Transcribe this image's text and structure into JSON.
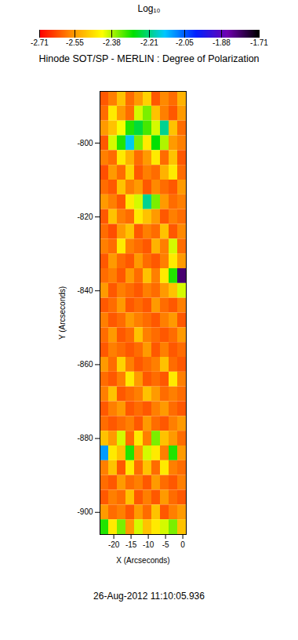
{
  "chart_data": {
    "type": "heatmap",
    "title": "Hinode SOT/SP - MERLIN : Degree of Polarization",
    "x_label": "X (Arcseconds)",
    "y_label": "Y (Arcseconds)",
    "annotation": "26-Aug-2012 11:10:05.936",
    "xlim": [
      -24,
      1
    ],
    "xticks": [
      -20,
      -15,
      -10,
      -5,
      0
    ],
    "ylim": [
      -906,
      -786
    ],
    "yticks": [
      -800,
      -820,
      -840,
      -860,
      -880,
      -900
    ],
    "colorbar": {
      "label": "Log₁₀",
      "range": [
        -2.71,
        -1.71
      ],
      "ticks": [
        -2.71,
        -2.55,
        -2.38,
        -2.21,
        -2.05,
        -1.88,
        -1.71
      ]
    },
    "cells": {
      "x_edges": [
        -24,
        -21.5,
        -19,
        -16.5,
        -14,
        -11.5,
        -9,
        -6.5,
        -4,
        -1.5,
        1
      ],
      "y_edges": [
        -786,
        -790,
        -794,
        -798,
        -802,
        -806,
        -810,
        -814,
        -818,
        -822,
        -826,
        -830,
        -834,
        -838,
        -842,
        -846,
        -850,
        -854,
        -858,
        -862,
        -866,
        -870,
        -874,
        -878,
        -882,
        -886,
        -890,
        -894,
        -898,
        -902,
        -906
      ],
      "values": [
        [
          -2.62,
          -2.58,
          -2.5,
          -2.6,
          -2.55,
          -2.48,
          -2.62,
          -2.57,
          -2.6,
          -2.52
        ],
        [
          -2.6,
          -2.45,
          -2.55,
          -2.6,
          -2.4,
          -2.35,
          -2.5,
          -2.58,
          -2.62,
          -2.55
        ],
        [
          -2.55,
          -2.5,
          -2.42,
          -2.3,
          -2.25,
          -2.32,
          -2.4,
          -2.2,
          -2.5,
          -2.6
        ],
        [
          -2.62,
          -2.4,
          -2.3,
          -2.15,
          -2.35,
          -2.45,
          -2.28,
          -2.38,
          -2.55,
          -2.58
        ],
        [
          -2.58,
          -2.6,
          -2.45,
          -2.52,
          -2.6,
          -2.55,
          -2.45,
          -2.6,
          -2.5,
          -2.62
        ],
        [
          -2.63,
          -2.55,
          -2.6,
          -2.48,
          -2.62,
          -2.58,
          -2.6,
          -2.52,
          -2.45,
          -2.6
        ],
        [
          -2.6,
          -2.62,
          -2.5,
          -2.58,
          -2.55,
          -2.62,
          -2.57,
          -2.6,
          -2.62,
          -2.55
        ],
        [
          -2.55,
          -2.58,
          -2.62,
          -2.45,
          -2.4,
          -2.2,
          -2.35,
          -2.55,
          -2.6,
          -2.58
        ],
        [
          -2.62,
          -2.5,
          -2.58,
          -2.6,
          -2.45,
          -2.5,
          -2.55,
          -2.62,
          -2.58,
          -2.6
        ],
        [
          -2.6,
          -2.63,
          -2.55,
          -2.5,
          -2.62,
          -2.58,
          -2.6,
          -2.5,
          -2.62,
          -2.57
        ],
        [
          -2.58,
          -2.6,
          -2.45,
          -2.58,
          -2.6,
          -2.62,
          -2.52,
          -2.58,
          -2.4,
          -2.6
        ],
        [
          -2.62,
          -2.55,
          -2.6,
          -2.62,
          -2.55,
          -2.6,
          -2.62,
          -2.58,
          -2.45,
          -2.55
        ],
        [
          -2.6,
          -2.58,
          -2.62,
          -2.55,
          -2.6,
          -2.5,
          -2.58,
          -2.45,
          -2.3,
          -1.8
        ],
        [
          -2.55,
          -2.62,
          -2.58,
          -2.6,
          -2.62,
          -2.58,
          -2.6,
          -2.55,
          -2.5,
          -2.4
        ],
        [
          -2.62,
          -2.6,
          -2.55,
          -2.62,
          -2.6,
          -2.62,
          -2.55,
          -2.6,
          -2.62,
          -2.58
        ],
        [
          -2.58,
          -2.62,
          -2.6,
          -2.55,
          -2.58,
          -2.6,
          -2.62,
          -2.58,
          -2.55,
          -2.62
        ],
        [
          -2.6,
          -2.55,
          -2.62,
          -2.6,
          -2.5,
          -2.58,
          -2.6,
          -2.62,
          -2.6,
          -2.55
        ],
        [
          -2.62,
          -2.58,
          -2.6,
          -2.62,
          -2.6,
          -2.55,
          -2.62,
          -2.58,
          -2.62,
          -2.6
        ],
        [
          -2.55,
          -2.6,
          -2.48,
          -2.58,
          -2.62,
          -2.6,
          -2.58,
          -2.5,
          -2.6,
          -2.62
        ],
        [
          -2.6,
          -2.62,
          -2.58,
          -2.45,
          -2.55,
          -2.62,
          -2.6,
          -2.62,
          -2.45,
          -2.58
        ],
        [
          -2.58,
          -2.5,
          -2.62,
          -2.6,
          -2.58,
          -2.5,
          -2.55,
          -2.6,
          -2.58,
          -2.6
        ],
        [
          -2.62,
          -2.58,
          -2.55,
          -2.62,
          -2.6,
          -2.62,
          -2.58,
          -2.55,
          -2.6,
          -2.62
        ],
        [
          -2.6,
          -2.62,
          -2.6,
          -2.58,
          -2.62,
          -2.55,
          -2.6,
          -2.62,
          -2.58,
          -2.55
        ],
        [
          -2.5,
          -2.55,
          -2.4,
          -2.6,
          -2.45,
          -2.58,
          -2.35,
          -2.5,
          -2.55,
          -2.6
        ],
        [
          -2.1,
          -2.45,
          -2.5,
          -2.3,
          -2.55,
          -2.4,
          -2.45,
          -2.58,
          -2.3,
          -2.55
        ],
        [
          -2.58,
          -2.5,
          -2.62,
          -2.45,
          -2.6,
          -2.5,
          -2.6,
          -2.45,
          -2.58,
          -2.6
        ],
        [
          -2.6,
          -2.62,
          -2.55,
          -2.6,
          -2.58,
          -2.62,
          -2.55,
          -2.6,
          -2.62,
          -2.58
        ],
        [
          -2.62,
          -2.58,
          -2.6,
          -2.5,
          -2.62,
          -2.58,
          -2.62,
          -2.55,
          -2.6,
          -2.62
        ],
        [
          -2.55,
          -2.6,
          -2.58,
          -2.62,
          -2.55,
          -2.6,
          -2.5,
          -2.62,
          -2.58,
          -2.55
        ],
        [
          -2.3,
          -2.45,
          -2.35,
          -2.55,
          -2.4,
          -2.5,
          -2.45,
          -2.4,
          -2.35,
          -2.5
        ]
      ]
    }
  }
}
